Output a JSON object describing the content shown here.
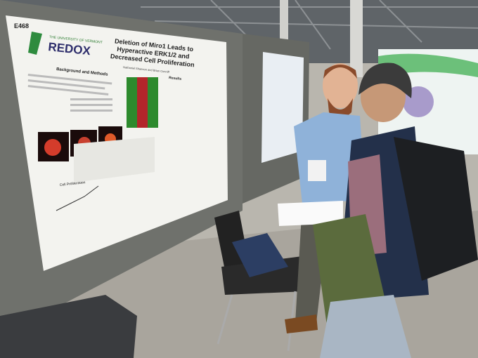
{
  "poster": {
    "id": "E468",
    "institution": "THE UNIVERSITY OF VERMONT",
    "logo": "REDOX",
    "title": "Deletion of Miro1 Leads to Hyperactive ERK1/2 and Decreased Cell Proliferation",
    "authors": "Nathaniel Shannon and Brian Cunniff",
    "sections": [
      "Background and Methods",
      "Results"
    ],
    "chart_label": "Cell Proliferation"
  }
}
